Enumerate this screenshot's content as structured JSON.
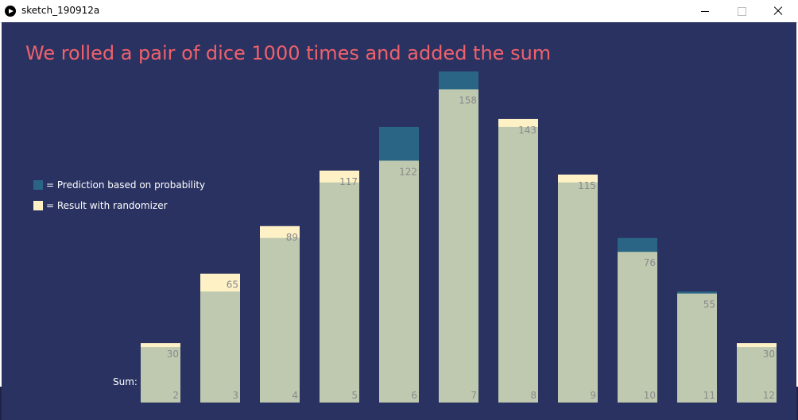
{
  "window": {
    "title": "sketch_190912a"
  },
  "heading": "We rolled a pair of dice 1000 times and added the sum",
  "legend": {
    "prediction": "= Prediction based on probability",
    "result": "= Result with randomizer"
  },
  "sum_label": "Sum:",
  "colors": {
    "background": "#2a3262",
    "title": "#f0616b",
    "prediction": "#2a6585",
    "result": "#fdf1c5",
    "overlap": "#bfc9b0",
    "value_text": "#8a8a8a"
  },
  "chart_data": {
    "type": "bar",
    "title": "We rolled a pair of dice 1000 times and added the sum",
    "xlabel": "Sum:",
    "categories": [
      "2",
      "3",
      "4",
      "5",
      "6",
      "7",
      "8",
      "9",
      "10",
      "11",
      "12"
    ],
    "series": [
      {
        "name": "Prediction based on probability",
        "values": [
          28,
          56,
          83,
          111,
          139,
          167,
          139,
          111,
          83,
          56,
          28
        ]
      },
      {
        "name": "Result with randomizer",
        "values": [
          30,
          65,
          89,
          117,
          122,
          158,
          143,
          115,
          76,
          55,
          30
        ]
      }
    ],
    "value_labels": [
      "30",
      "65",
      "89",
      "117",
      "122",
      "158",
      "143",
      "115",
      "76",
      "55",
      "30"
    ],
    "ylim": [
      0,
      167
    ],
    "grid": false,
    "legend_position": "left"
  }
}
